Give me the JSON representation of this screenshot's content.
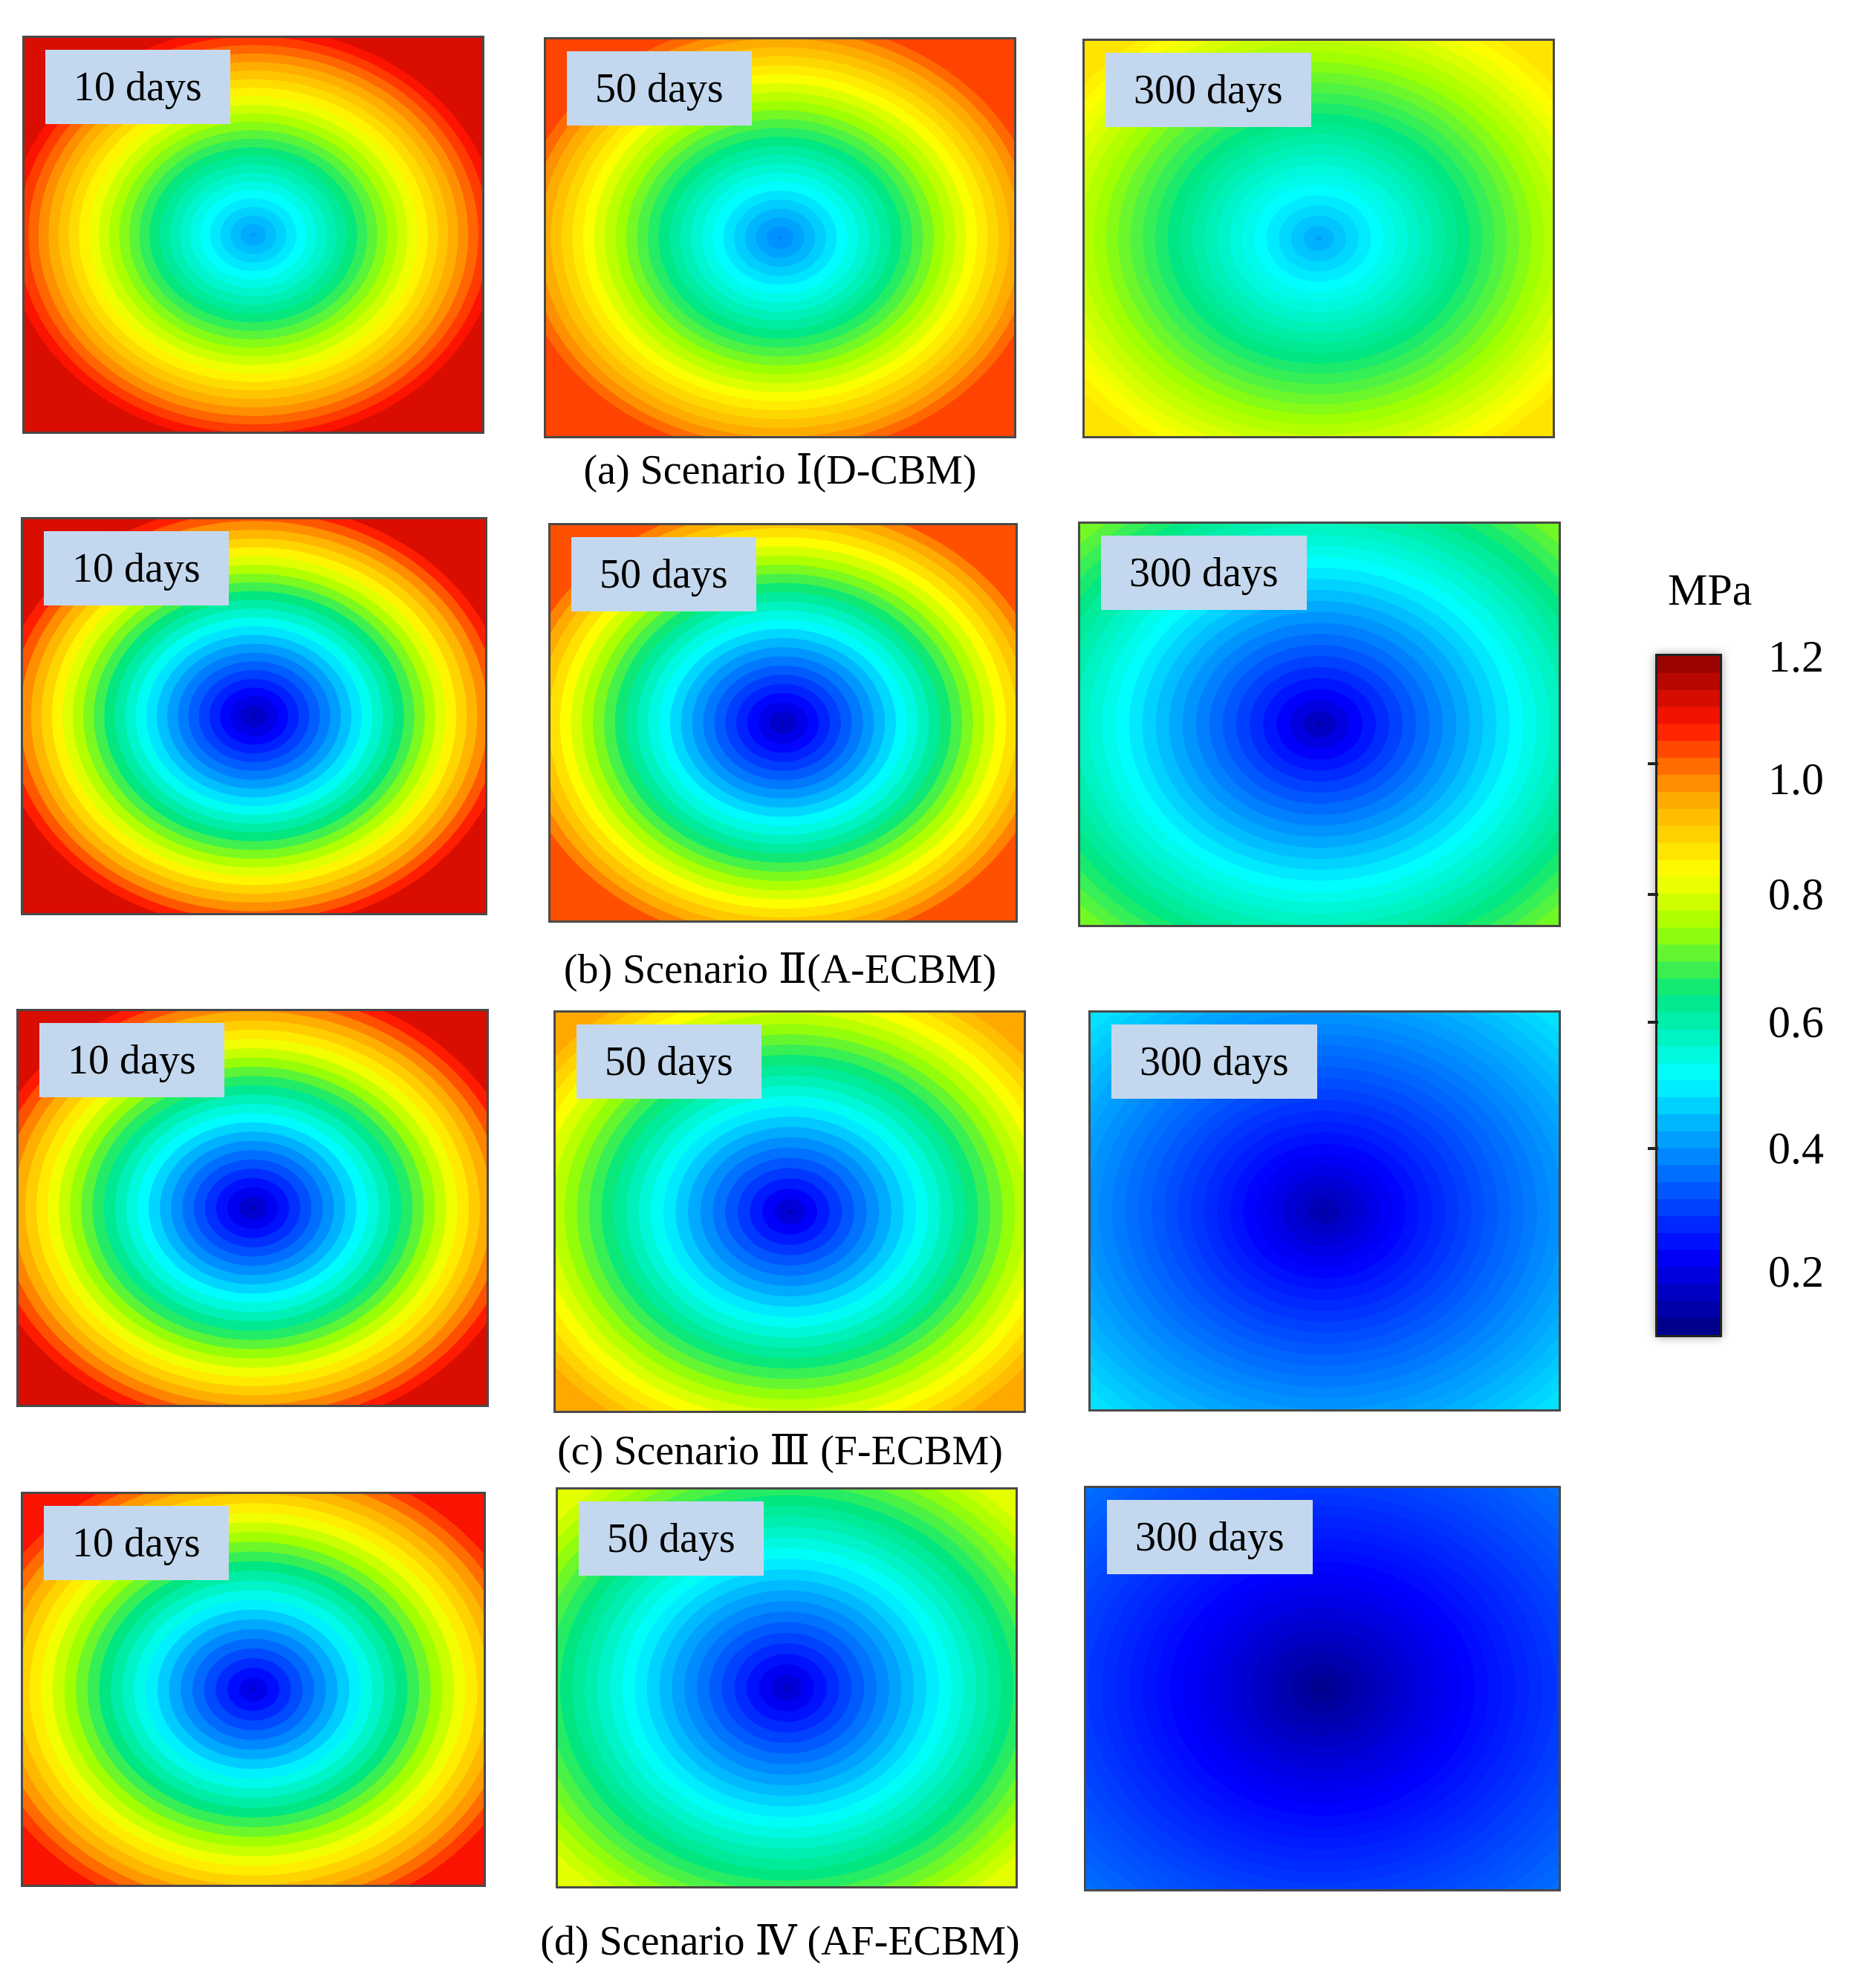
{
  "chart_data": {
    "type": "heatmap",
    "title": "",
    "colorbar": {
      "unit": "MPa",
      "ticks": [
        "1.2",
        "1.0",
        "0.8",
        "0.6",
        "0.4",
        "0.2"
      ],
      "range": [
        0.15,
        1.2
      ]
    },
    "rows": [
      {
        "caption": "(a) Scenario  Ⅰ(D-CBM)",
        "panels": [
          {
            "label": "10 days",
            "center_min": 0.45,
            "edge": 1.13,
            "spread": 0.18
          },
          {
            "label": "50 days",
            "center_min": 0.42,
            "edge": 1.06,
            "spread": 0.24
          },
          {
            "label": "300 days",
            "center_min": 0.45,
            "edge": 0.9,
            "spread": 0.45
          }
        ]
      },
      {
        "caption": "(b) Scenario  Ⅱ(A-ECBM)",
        "panels": [
          {
            "label": "10 days",
            "center_min": 0.2,
            "edge": 1.13,
            "spread": 0.22
          },
          {
            "label": "50 days",
            "center_min": 0.2,
            "edge": 1.05,
            "spread": 0.28
          },
          {
            "label": "300 days",
            "center_min": 0.18,
            "edge": 0.75,
            "spread": 0.55
          }
        ]
      },
      {
        "caption": "(c) Scenario Ⅲ (F-ECBM)",
        "panels": [
          {
            "label": "10 days",
            "center_min": 0.2,
            "edge": 1.13,
            "spread": 0.3
          },
          {
            "label": "50 days",
            "center_min": 0.2,
            "edge": 0.98,
            "spread": 0.45
          },
          {
            "label": "300 days",
            "center_min": 0.18,
            "edge": 0.52,
            "spread": 0.55
          }
        ]
      },
      {
        "caption": "(d) Scenario Ⅳ (AF-ECBM)",
        "panels": [
          {
            "label": "10 days",
            "center_min": 0.22,
            "edge": 1.1,
            "spread": 0.38
          },
          {
            "label": "50 days",
            "center_min": 0.2,
            "edge": 0.84,
            "spread": 0.5
          },
          {
            "label": "300 days",
            "center_min": 0.15,
            "edge": 0.4,
            "spread": 0.6
          }
        ]
      }
    ]
  }
}
